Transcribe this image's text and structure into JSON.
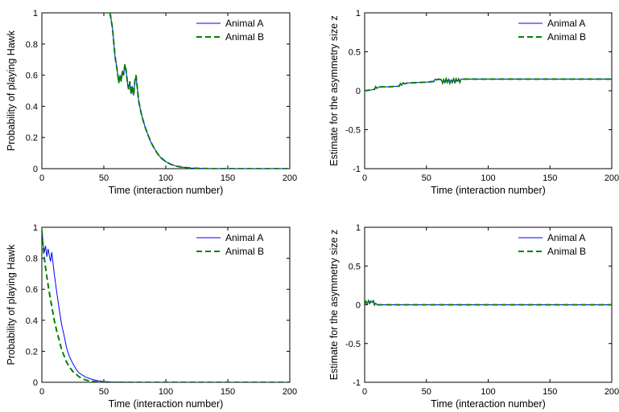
{
  "figure": {
    "background": "#ffffff"
  },
  "chart_data": [
    {
      "type": "line",
      "xlabel": "Time (interaction number)",
      "ylabel": "Probability of playing Hawk",
      "xlim": [
        0,
        200
      ],
      "ylim": [
        0,
        1
      ],
      "xticks": [
        "0",
        "50",
        "100",
        "150",
        "200"
      ],
      "yticks": [
        "0",
        "0.2",
        "0.4",
        "0.6",
        "0.8",
        "1"
      ],
      "xtick_values": [
        0,
        50,
        100,
        150,
        200
      ],
      "ytick_values": [
        0,
        0.2,
        0.4,
        0.6,
        0.8,
        1
      ],
      "legend_position": "top-right",
      "grid": false,
      "series": [
        {
          "name": "Animal A",
          "color": "#0000ff",
          "style": "solid",
          "x": [
            55,
            57,
            59,
            61,
            62,
            63,
            64,
            65,
            66,
            67,
            68,
            69,
            70,
            71,
            72,
            73,
            74,
            75,
            76,
            78,
            80,
            82,
            84,
            86,
            88,
            90,
            93,
            96,
            100,
            104,
            108,
            112,
            116,
            120,
            125,
            130,
            140,
            150,
            160,
            170,
            180,
            190,
            200
          ],
          "y": [
            1.0,
            0.9,
            0.72,
            0.62,
            0.55,
            0.6,
            0.56,
            0.63,
            0.6,
            0.67,
            0.63,
            0.55,
            0.51,
            0.56,
            0.48,
            0.53,
            0.47,
            0.56,
            0.6,
            0.44,
            0.36,
            0.3,
            0.25,
            0.21,
            0.17,
            0.14,
            0.1,
            0.07,
            0.045,
            0.028,
            0.017,
            0.011,
            0.007,
            0.004,
            0.002,
            0.001,
            0,
            0,
            0,
            0,
            0,
            0,
            0
          ]
        },
        {
          "name": "Animal B",
          "color": "#008000",
          "style": "dashed",
          "x": [
            55,
            57,
            59,
            61,
            62,
            63,
            64,
            65,
            66,
            67,
            68,
            69,
            70,
            71,
            72,
            73,
            74,
            75,
            76,
            78,
            80,
            82,
            84,
            86,
            88,
            90,
            93,
            96,
            100,
            104,
            108,
            112,
            116,
            120,
            125,
            130,
            140,
            150,
            160,
            170,
            180,
            190,
            200
          ],
          "y": [
            1.0,
            0.9,
            0.72,
            0.62,
            0.55,
            0.6,
            0.56,
            0.63,
            0.6,
            0.67,
            0.63,
            0.55,
            0.51,
            0.56,
            0.48,
            0.53,
            0.47,
            0.56,
            0.6,
            0.44,
            0.36,
            0.3,
            0.25,
            0.21,
            0.17,
            0.14,
            0.1,
            0.07,
            0.045,
            0.028,
            0.017,
            0.011,
            0.007,
            0.004,
            0.002,
            0.001,
            0,
            0,
            0,
            0,
            0,
            0,
            0
          ]
        }
      ]
    },
    {
      "type": "line",
      "xlabel": "Time (interaction number)",
      "ylabel": "Estimate for the asymmetry size z",
      "xlim": [
        0,
        200
      ],
      "ylim": [
        -1,
        1
      ],
      "xticks": [
        "0",
        "50",
        "100",
        "150",
        "200"
      ],
      "yticks": [
        "-1",
        "-0.5",
        "0",
        "0.5",
        "1"
      ],
      "xtick_values": [
        0,
        50,
        100,
        150,
        200
      ],
      "ytick_values": [
        -1,
        -0.5,
        0,
        0.5,
        1
      ],
      "legend_position": "top-right",
      "grid": false,
      "series": [
        {
          "name": "Animal A",
          "color": "#0000ff",
          "style": "solid",
          "x": [
            0,
            5,
            8,
            9,
            10,
            12,
            20,
            28,
            29,
            30,
            31,
            32,
            35,
            50,
            56,
            57,
            58,
            60,
            62,
            63,
            64,
            65,
            66,
            67,
            68,
            69,
            70,
            71,
            72,
            73,
            74,
            75,
            76,
            77,
            78,
            80,
            100,
            200
          ],
          "y": [
            0,
            0.01,
            0.02,
            0.05,
            0.03,
            0.05,
            0.05,
            0.06,
            0.09,
            0.07,
            0.1,
            0.09,
            0.1,
            0.11,
            0.12,
            0.15,
            0.14,
            0.15,
            0.14,
            0.1,
            0.14,
            0.1,
            0.15,
            0.11,
            0.15,
            0.1,
            0.14,
            0.11,
            0.15,
            0.1,
            0.15,
            0.12,
            0.15,
            0.11,
            0.15,
            0.15,
            0.15,
            0.15
          ]
        },
        {
          "name": "Animal B",
          "color": "#008000",
          "style": "dashed",
          "x": [
            0,
            5,
            8,
            9,
            10,
            12,
            20,
            28,
            29,
            30,
            31,
            32,
            35,
            50,
            56,
            57,
            58,
            60,
            62,
            63,
            64,
            65,
            66,
            67,
            68,
            69,
            70,
            71,
            72,
            73,
            74,
            75,
            76,
            77,
            78,
            80,
            100,
            200
          ],
          "y": [
            0,
            0.01,
            0.02,
            0.05,
            0.03,
            0.05,
            0.05,
            0.06,
            0.09,
            0.07,
            0.1,
            0.09,
            0.1,
            0.11,
            0.12,
            0.15,
            0.14,
            0.15,
            0.14,
            0.1,
            0.14,
            0.1,
            0.15,
            0.11,
            0.15,
            0.1,
            0.14,
            0.11,
            0.15,
            0.1,
            0.15,
            0.12,
            0.15,
            0.11,
            0.15,
            0.15,
            0.15,
            0.15
          ]
        }
      ]
    },
    {
      "type": "line",
      "xlabel": "Time (interaction number)",
      "ylabel": "Probability of playing Hawk",
      "xlim": [
        0,
        200
      ],
      "ylim": [
        0,
        1
      ],
      "xticks": [
        "0",
        "50",
        "100",
        "150",
        "200"
      ],
      "yticks": [
        "0",
        "0.2",
        "0.4",
        "0.6",
        "0.8",
        "1"
      ],
      "xtick_values": [
        0,
        50,
        100,
        150,
        200
      ],
      "ytick_values": [
        0,
        0.2,
        0.4,
        0.6,
        0.8,
        1
      ],
      "legend_position": "top-right",
      "grid": false,
      "series": [
        {
          "name": "Animal A",
          "color": "#0000ff",
          "style": "solid",
          "x": [
            0,
            1,
            2,
            3,
            4,
            5,
            6,
            7,
            8,
            10,
            12,
            14,
            16,
            18,
            20,
            22,
            25,
            28,
            30,
            35,
            40,
            45,
            50,
            55,
            60,
            80,
            100,
            150,
            200
          ],
          "y": [
            0.98,
            0.9,
            0.84,
            0.88,
            0.81,
            0.86,
            0.82,
            0.78,
            0.84,
            0.7,
            0.58,
            0.47,
            0.37,
            0.3,
            0.22,
            0.17,
            0.12,
            0.08,
            0.06,
            0.035,
            0.02,
            0.01,
            0.005,
            0.002,
            0.001,
            0,
            0,
            0,
            0
          ]
        },
        {
          "name": "Animal B",
          "color": "#008000",
          "style": "dashed",
          "x": [
            0,
            1,
            2,
            3,
            4,
            6,
            8,
            10,
            12,
            14,
            16,
            18,
            20,
            22,
            25,
            28,
            30,
            35,
            40,
            45,
            50,
            55,
            60,
            80,
            100,
            150,
            200
          ],
          "y": [
            0.98,
            0.88,
            0.8,
            0.74,
            0.68,
            0.58,
            0.49,
            0.4,
            0.33,
            0.27,
            0.21,
            0.17,
            0.13,
            0.1,
            0.07,
            0.05,
            0.035,
            0.015,
            0.007,
            0.003,
            0.001,
            0,
            0,
            0,
            0,
            0,
            0
          ]
        }
      ]
    },
    {
      "type": "line",
      "xlabel": "Time (interaction number)",
      "ylabel": "Estimate for the asymmetry size z",
      "xlim": [
        0,
        200
      ],
      "ylim": [
        -1,
        1
      ],
      "xticks": [
        "0",
        "50",
        "100",
        "150",
        "200"
      ],
      "yticks": [
        "-1",
        "-0.5",
        "0",
        "0.5",
        "1"
      ],
      "xtick_values": [
        0,
        50,
        100,
        150,
        200
      ],
      "ytick_values": [
        -1,
        -0.5,
        0,
        0.5,
        1
      ],
      "legend_position": "top-right",
      "grid": false,
      "series": [
        {
          "name": "Animal A",
          "color": "#0000ff",
          "style": "solid",
          "x": [
            0,
            1,
            2,
            3,
            4,
            5,
            6,
            7,
            8,
            9,
            10,
            200
          ],
          "y": [
            0,
            0.04,
            0.01,
            0.05,
            0.02,
            0.05,
            0.03,
            0.05,
            0.0,
            0.02,
            0.0,
            0.0
          ]
        },
        {
          "name": "Animal B",
          "color": "#008000",
          "style": "dashed",
          "x": [
            0,
            1,
            2,
            3,
            4,
            5,
            6,
            7,
            8,
            9,
            10,
            200
          ],
          "y": [
            0,
            0.04,
            0.01,
            0.05,
            0.02,
            0.05,
            0.03,
            0.05,
            0.0,
            0.02,
            0.0,
            0.0
          ]
        }
      ]
    }
  ]
}
